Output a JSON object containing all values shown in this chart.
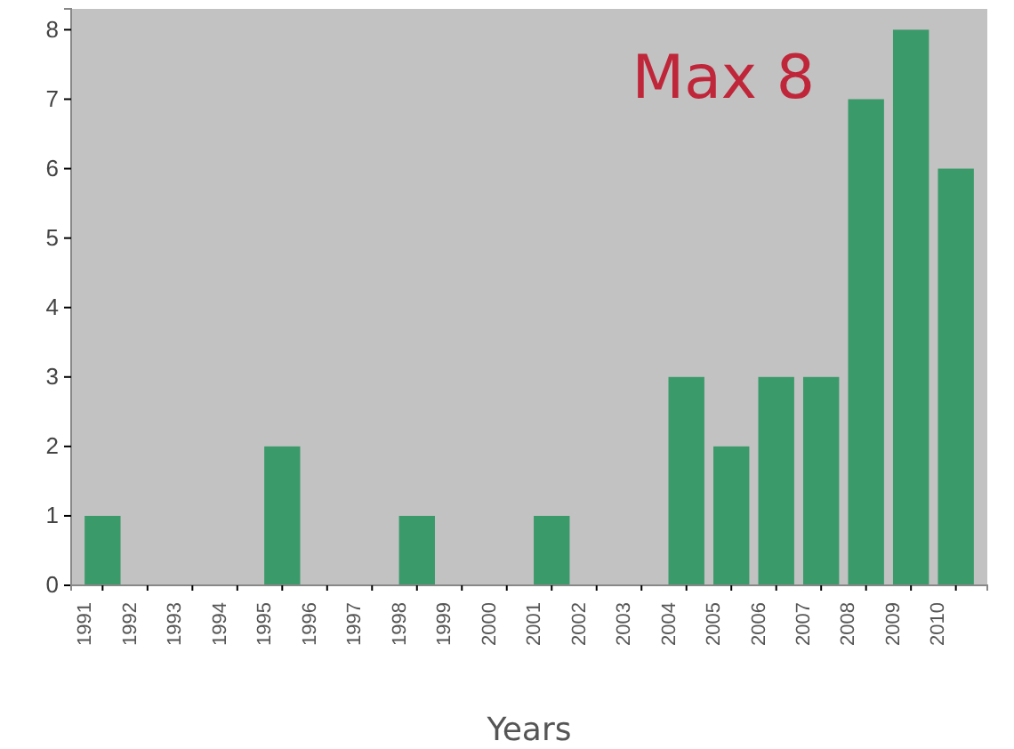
{
  "chart_data": {
    "type": "bar",
    "xlabel": "Years",
    "categories": [
      "1991",
      "1992",
      "1993",
      "1994",
      "1995",
      "1996",
      "1997",
      "1998",
      "1999",
      "2000",
      "2001",
      "2002",
      "2003",
      "2004",
      "2005",
      "2006",
      "2007",
      "2008",
      "2009",
      "2010"
    ],
    "values": [
      1,
      0,
      0,
      0,
      2,
      0,
      0,
      1,
      0,
      0,
      1,
      0,
      0,
      3,
      2,
      3,
      3,
      7,
      8,
      6
    ],
    "color": "#3b9a6a",
    "ylim": [
      0,
      8.3
    ],
    "yticks": [
      0,
      1,
      2,
      3,
      4,
      5,
      6,
      7,
      8
    ],
    "annotations": [
      "Max 8"
    ]
  }
}
